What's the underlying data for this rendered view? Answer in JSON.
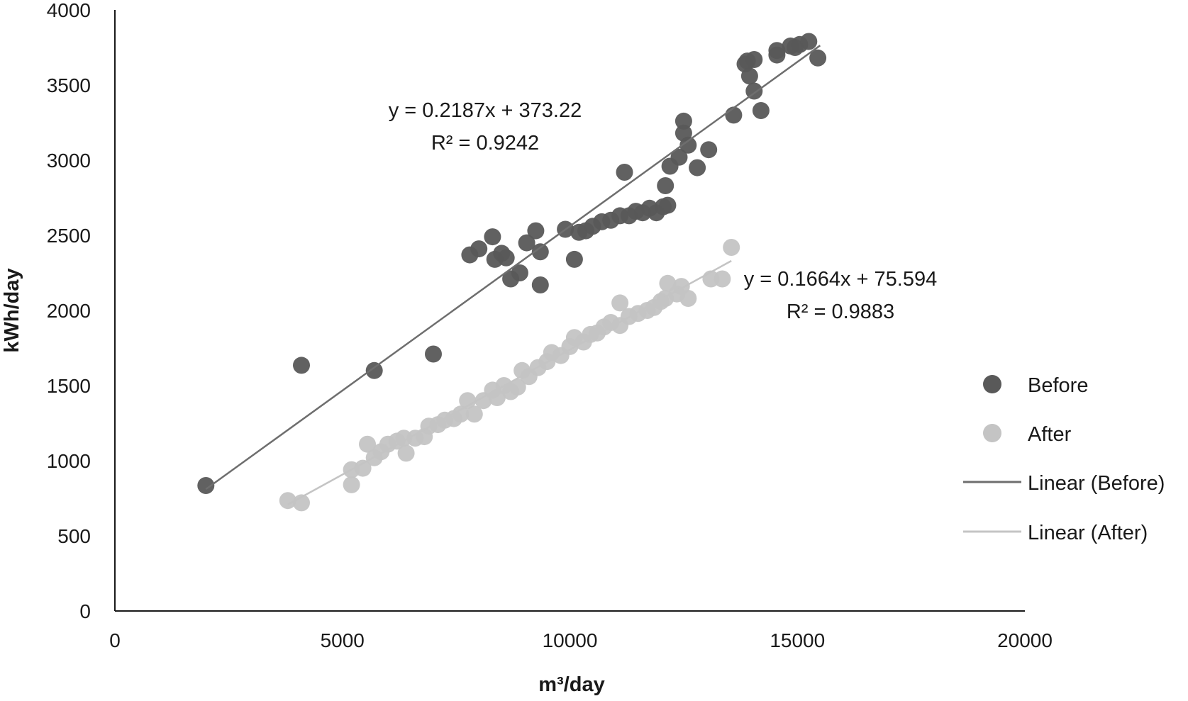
{
  "chart_data": {
    "type": "scatter",
    "xlabel": "m³/day",
    "ylabel": "kWh/day",
    "xlim": [
      0,
      20000
    ],
    "ylim": [
      0,
      4000
    ],
    "xticks": [
      "0",
      "5000",
      "10000",
      "15000",
      "20000"
    ],
    "yticks": [
      "0",
      "500",
      "1000",
      "1500",
      "2000",
      "2500",
      "3000",
      "3500",
      "4000"
    ],
    "grid": false,
    "legend_position": "right",
    "series": [
      {
        "name": "Before",
        "color": "#595959",
        "points": [
          [
            2000,
            835
          ],
          [
            4100,
            1635
          ],
          [
            5700,
            1600
          ],
          [
            7000,
            1710
          ],
          [
            7800,
            2370
          ],
          [
            8000,
            2410
          ],
          [
            8300,
            2490
          ],
          [
            8350,
            2340
          ],
          [
            8500,
            2380
          ],
          [
            8600,
            2350
          ],
          [
            8700,
            2210
          ],
          [
            8900,
            2250
          ],
          [
            9050,
            2450
          ],
          [
            9250,
            2530
          ],
          [
            9350,
            2390
          ],
          [
            9350,
            2170
          ],
          [
            9900,
            2540
          ],
          [
            10100,
            2340
          ],
          [
            10200,
            2520
          ],
          [
            10350,
            2530
          ],
          [
            10500,
            2560
          ],
          [
            10700,
            2590
          ],
          [
            10900,
            2600
          ],
          [
            11100,
            2630
          ],
          [
            11200,
            2920
          ],
          [
            11300,
            2630
          ],
          [
            11450,
            2660
          ],
          [
            11600,
            2650
          ],
          [
            11750,
            2680
          ],
          [
            11900,
            2650
          ],
          [
            12050,
            2690
          ],
          [
            12150,
            2700
          ],
          [
            12100,
            2830
          ],
          [
            12200,
            2960
          ],
          [
            12400,
            3020
          ],
          [
            12500,
            3180
          ],
          [
            12500,
            3260
          ],
          [
            12600,
            3100
          ],
          [
            12800,
            2950
          ],
          [
            13050,
            3070
          ],
          [
            13600,
            3300
          ],
          [
            13850,
            3640
          ],
          [
            13900,
            3660
          ],
          [
            13950,
            3560
          ],
          [
            14050,
            3670
          ],
          [
            14050,
            3460
          ],
          [
            14200,
            3330
          ],
          [
            14550,
            3700
          ],
          [
            14550,
            3730
          ],
          [
            14850,
            3760
          ],
          [
            14950,
            3750
          ],
          [
            15050,
            3770
          ],
          [
            15250,
            3790
          ],
          [
            15450,
            3680
          ]
        ],
        "trendline": {
          "name": "Linear (Before)",
          "slope": 0.2187,
          "intercept": 373.22,
          "x_range": [
            2000,
            15500
          ],
          "color": "#6e6e6e"
        }
      },
      {
        "name": "After",
        "color": "#c4c4c4",
        "points": [
          [
            3800,
            735
          ],
          [
            4100,
            720
          ],
          [
            5200,
            840
          ],
          [
            5200,
            940
          ],
          [
            5450,
            950
          ],
          [
            5550,
            1110
          ],
          [
            5700,
            1020
          ],
          [
            5850,
            1060
          ],
          [
            6000,
            1110
          ],
          [
            6200,
            1130
          ],
          [
            6350,
            1150
          ],
          [
            6400,
            1050
          ],
          [
            6600,
            1150
          ],
          [
            6800,
            1160
          ],
          [
            6900,
            1230
          ],
          [
            7100,
            1240
          ],
          [
            7250,
            1270
          ],
          [
            7450,
            1280
          ],
          [
            7600,
            1310
          ],
          [
            7750,
            1400
          ],
          [
            7900,
            1310
          ],
          [
            8100,
            1400
          ],
          [
            8300,
            1470
          ],
          [
            8400,
            1420
          ],
          [
            8550,
            1500
          ],
          [
            8700,
            1460
          ],
          [
            8850,
            1490
          ],
          [
            8950,
            1600
          ],
          [
            9100,
            1560
          ],
          [
            9300,
            1620
          ],
          [
            9500,
            1660
          ],
          [
            9600,
            1720
          ],
          [
            9800,
            1700
          ],
          [
            10000,
            1760
          ],
          [
            10100,
            1820
          ],
          [
            10300,
            1790
          ],
          [
            10450,
            1840
          ],
          [
            10600,
            1850
          ],
          [
            10750,
            1890
          ],
          [
            10900,
            1920
          ],
          [
            11100,
            1900
          ],
          [
            11100,
            2050
          ],
          [
            11300,
            1960
          ],
          [
            11500,
            1980
          ],
          [
            11700,
            2000
          ],
          [
            11850,
            2020
          ],
          [
            12000,
            2060
          ],
          [
            12100,
            2080
          ],
          [
            12150,
            2180
          ],
          [
            12350,
            2110
          ],
          [
            12450,
            2160
          ],
          [
            12600,
            2080
          ],
          [
            13100,
            2210
          ],
          [
            13350,
            2210
          ],
          [
            13550,
            2420
          ]
        ],
        "trendline": {
          "name": "Linear (After)",
          "slope": 0.1664,
          "intercept": 75.594,
          "x_range": [
            3800,
            13550
          ],
          "color": "#c4c4c4"
        }
      }
    ],
    "annotations": [
      {
        "line1": "y = 0.2187x + 373.22",
        "line2": "R² = 0.9242"
      },
      {
        "line1": "y = 0.1664x + 75.594",
        "line2": "R² = 0.9883"
      }
    ],
    "legend": [
      {
        "label": "Before",
        "kind": "marker",
        "color": "#595959"
      },
      {
        "label": "After",
        "kind": "marker",
        "color": "#c4c4c4"
      },
      {
        "label": "Linear (Before)",
        "kind": "line",
        "color": "#6e6e6e"
      },
      {
        "label": "Linear (After)",
        "kind": "line",
        "color": "#c4c4c4"
      }
    ]
  }
}
